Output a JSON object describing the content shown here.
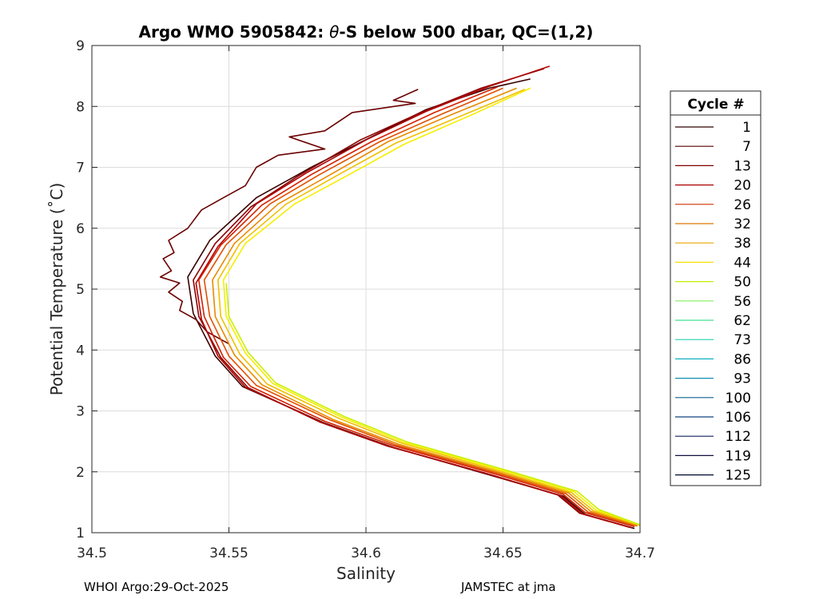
{
  "chart_data": {
    "type": "line",
    "title_prefix": "Argo WMO 5905842: ",
    "title_theta": "θ",
    "title_suffix": "-S below 500 dbar,  QC=(1,2)",
    "xlabel": "Salinity",
    "ylabel": "Potential Temperature (˚C)",
    "xlim": [
      34.5,
      34.7
    ],
    "ylim": [
      1,
      9
    ],
    "xticks": [
      "34.5",
      "34.55",
      "34.6",
      "34.65",
      "34.7"
    ],
    "yticks": [
      "1",
      "2",
      "3",
      "4",
      "5",
      "6",
      "7",
      "8",
      "9"
    ],
    "grid": true,
    "legend": {
      "title": "Cycle #",
      "placement": "right-outside",
      "entries": [
        "1",
        "7",
        "13",
        "20",
        "26",
        "32",
        "38",
        "44",
        "50",
        "56",
        "62",
        "73",
        "86",
        "93",
        "100",
        "106",
        "112",
        "119",
        "125"
      ],
      "colors": [
        "#2a0000",
        "#550000",
        "#800000",
        "#aa0000",
        "#cc3300",
        "#dd7700",
        "#e8a300",
        "#f5e000",
        "#c0f000",
        "#80f060",
        "#40e090",
        "#20d0b0",
        "#10b0c0",
        "#1090b0",
        "#106090",
        "#104080",
        "#102060",
        "#101040",
        "#000830"
      ]
    },
    "series": [
      {
        "color": "#3a0000",
        "points": [
          [
            34.698,
            1.07
          ],
          [
            34.68,
            1.3
          ],
          [
            34.672,
            1.6
          ],
          [
            34.645,
            1.95
          ],
          [
            34.61,
            2.4
          ],
          [
            34.585,
            2.8
          ],
          [
            34.555,
            3.4
          ],
          [
            34.545,
            3.9
          ],
          [
            34.537,
            4.6
          ],
          [
            34.535,
            5.2
          ],
          [
            34.543,
            5.8
          ],
          [
            34.56,
            6.5
          ],
          [
            34.58,
            7.0
          ],
          [
            34.602,
            7.5
          ],
          [
            34.622,
            7.95
          ],
          [
            34.645,
            8.3
          ],
          [
            34.66,
            8.45
          ]
        ]
      },
      {
        "color": "#6a0000",
        "points": [
          [
            34.619,
            8.28
          ],
          [
            34.61,
            8.1
          ],
          [
            34.618,
            8.05
          ],
          [
            34.595,
            7.9
          ],
          [
            34.585,
            7.6
          ],
          [
            34.572,
            7.5
          ],
          [
            34.585,
            7.3
          ],
          [
            34.568,
            7.2
          ],
          [
            34.56,
            7.0
          ],
          [
            34.556,
            6.7
          ],
          [
            34.548,
            6.5
          ],
          [
            34.54,
            6.3
          ],
          [
            34.535,
            6.0
          ],
          [
            34.528,
            5.8
          ],
          [
            34.53,
            5.6
          ],
          [
            34.526,
            5.5
          ],
          [
            34.529,
            5.3
          ],
          [
            34.525,
            5.2
          ],
          [
            34.532,
            5.1
          ],
          [
            34.528,
            4.95
          ],
          [
            34.533,
            4.8
          ],
          [
            34.532,
            4.65
          ],
          [
            34.538,
            4.5
          ],
          [
            34.542,
            4.3
          ],
          [
            34.55,
            4.1
          ]
        ]
      },
      {
        "color": "#8b0000",
        "points": [
          [
            34.697,
            1.08
          ],
          [
            34.678,
            1.32
          ],
          [
            34.67,
            1.62
          ],
          [
            34.644,
            1.97
          ],
          [
            34.608,
            2.42
          ],
          [
            34.583,
            2.82
          ],
          [
            34.557,
            3.38
          ],
          [
            34.547,
            3.88
          ],
          [
            34.539,
            4.55
          ],
          [
            34.537,
            5.15
          ],
          [
            34.545,
            5.75
          ],
          [
            34.558,
            6.35
          ],
          [
            34.575,
            6.85
          ],
          [
            34.598,
            7.45
          ],
          [
            34.62,
            7.9
          ],
          [
            34.642,
            8.3
          ],
          [
            34.665,
            8.62
          ]
        ]
      },
      {
        "color": "#b00000",
        "points": [
          [
            34.696,
            1.09
          ],
          [
            34.679,
            1.31
          ],
          [
            34.671,
            1.61
          ],
          [
            34.645,
            1.96
          ],
          [
            34.609,
            2.41
          ],
          [
            34.584,
            2.81
          ],
          [
            34.556,
            3.39
          ],
          [
            34.546,
            3.9
          ],
          [
            34.54,
            4.5
          ],
          [
            34.538,
            5.1
          ],
          [
            34.546,
            5.7
          ],
          [
            34.56,
            6.4
          ],
          [
            34.578,
            6.9
          ],
          [
            34.6,
            7.45
          ],
          [
            34.622,
            7.92
          ],
          [
            34.645,
            8.33
          ],
          [
            34.667,
            8.66
          ]
        ]
      },
      {
        "color": "#d42000",
        "points": [
          [
            34.698,
            1.1
          ],
          [
            34.68,
            1.33
          ],
          [
            34.672,
            1.63
          ],
          [
            34.646,
            1.98
          ],
          [
            34.61,
            2.43
          ],
          [
            34.585,
            2.83
          ],
          [
            34.558,
            3.4
          ],
          [
            34.548,
            3.88
          ],
          [
            34.541,
            4.55
          ],
          [
            34.539,
            5.15
          ],
          [
            34.547,
            5.72
          ],
          [
            34.562,
            6.38
          ],
          [
            34.58,
            6.88
          ],
          [
            34.602,
            7.42
          ],
          [
            34.625,
            7.9
          ],
          [
            34.648,
            8.32
          ]
        ]
      },
      {
        "color": "#e05000",
        "points": [
          [
            34.699,
            1.11
          ],
          [
            34.681,
            1.34
          ],
          [
            34.673,
            1.64
          ],
          [
            34.647,
            1.99
          ],
          [
            34.611,
            2.44
          ],
          [
            34.587,
            2.85
          ],
          [
            34.56,
            3.42
          ],
          [
            34.55,
            3.9
          ],
          [
            34.543,
            4.55
          ],
          [
            34.541,
            5.15
          ],
          [
            34.549,
            5.73
          ],
          [
            34.565,
            6.4
          ],
          [
            34.583,
            6.88
          ],
          [
            34.605,
            7.42
          ],
          [
            34.628,
            7.88
          ],
          [
            34.65,
            8.3
          ]
        ]
      },
      {
        "color": "#e88a00",
        "points": [
          [
            34.699,
            1.12
          ],
          [
            34.682,
            1.35
          ],
          [
            34.674,
            1.65
          ],
          [
            34.648,
            2.0
          ],
          [
            34.612,
            2.45
          ],
          [
            34.588,
            2.86
          ],
          [
            34.562,
            3.43
          ],
          [
            34.552,
            3.92
          ],
          [
            34.545,
            4.55
          ],
          [
            34.544,
            5.15
          ],
          [
            34.552,
            5.75
          ],
          [
            34.568,
            6.4
          ],
          [
            34.587,
            6.88
          ],
          [
            34.608,
            7.42
          ],
          [
            34.632,
            7.88
          ],
          [
            34.655,
            8.3
          ]
        ]
      },
      {
        "color": "#f0c000",
        "points": [
          [
            34.7,
            1.12
          ],
          [
            34.683,
            1.36
          ],
          [
            34.675,
            1.66
          ],
          [
            34.649,
            2.01
          ],
          [
            34.613,
            2.47
          ],
          [
            34.59,
            2.88
          ],
          [
            34.564,
            3.44
          ],
          [
            34.554,
            3.93
          ],
          [
            34.547,
            4.55
          ],
          [
            34.546,
            5.15
          ],
          [
            34.554,
            5.75
          ],
          [
            34.571,
            6.4
          ],
          [
            34.59,
            6.88
          ],
          [
            34.611,
            7.4
          ],
          [
            34.635,
            7.85
          ],
          [
            34.658,
            8.28
          ]
        ]
      },
      {
        "color": "#f5ee00",
        "points": [
          [
            34.7,
            1.13
          ],
          [
            34.684,
            1.37
          ],
          [
            34.676,
            1.67
          ],
          [
            34.65,
            2.02
          ],
          [
            34.614,
            2.48
          ],
          [
            34.591,
            2.9
          ],
          [
            34.566,
            3.45
          ],
          [
            34.556,
            3.95
          ],
          [
            34.549,
            4.55
          ],
          [
            34.548,
            5.15
          ],
          [
            34.556,
            5.75
          ],
          [
            34.574,
            6.4
          ],
          [
            34.593,
            6.86
          ],
          [
            34.614,
            7.38
          ],
          [
            34.638,
            7.85
          ],
          [
            34.66,
            8.3
          ]
        ]
      },
      {
        "color": "#c8f000",
        "points": [
          [
            34.7,
            1.13
          ],
          [
            34.685,
            1.38
          ],
          [
            34.677,
            1.68
          ],
          [
            34.651,
            2.03
          ],
          [
            34.615,
            2.49
          ],
          [
            34.592,
            2.91
          ],
          [
            34.567,
            3.46
          ],
          [
            34.557,
            3.96
          ],
          [
            34.55,
            4.55
          ],
          [
            34.549,
            5.1
          ]
        ]
      }
    ]
  },
  "footer": {
    "left": "WHOI Argo:29-Oct-2025",
    "right": "JAMSTEC at jma"
  }
}
